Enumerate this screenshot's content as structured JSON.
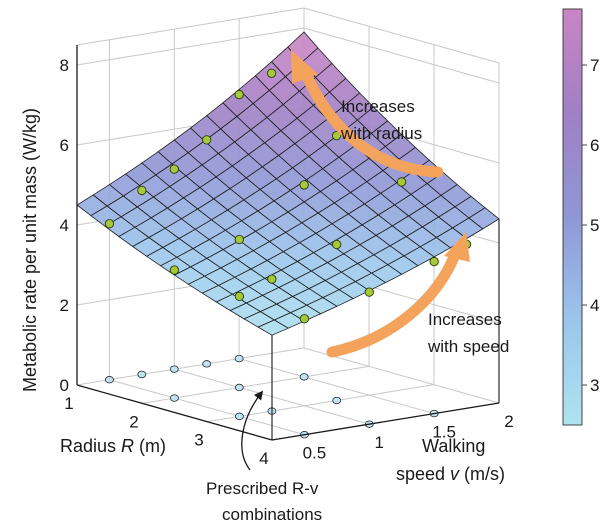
{
  "chart_data": {
    "type": "surface3d",
    "zlabel": "Metabolic rate per unit mass (W/kg)",
    "xlabel_pre": "Radius ",
    "xlabel_var": "R",
    "xlabel_post": " (m)",
    "ylabel_line1": "Walking",
    "ylabel_line2_pre": "speed ",
    "ylabel_line2_var": "v",
    "ylabel_line2_post": " (m/s)",
    "x_ticks": [
      "1",
      "2",
      "3",
      "4"
    ],
    "y_ticks": [
      "0.5",
      "1",
      "1.5",
      "2"
    ],
    "z_ticks": [
      "0",
      "2",
      "4",
      "6",
      "8"
    ],
    "xlim": [
      1,
      4
    ],
    "ylim": [
      0.25,
      2
    ],
    "zlim": [
      0,
      8.5
    ],
    "surface_corners": {
      "R1_v2": 7.9,
      "R1_v0.25": 4.5,
      "R4_v2": 4.6,
      "R4_v0.25": 2.6
    },
    "prescribed_points": [
      {
        "R": 1.0,
        "v": 0.5
      },
      {
        "R": 1.0,
        "v": 0.75
      },
      {
        "R": 1.0,
        "v": 1.0
      },
      {
        "R": 1.0,
        "v": 1.25
      },
      {
        "R": 1.0,
        "v": 1.5
      },
      {
        "R": 2.0,
        "v": 0.5
      },
      {
        "R": 2.0,
        "v": 1.0
      },
      {
        "R": 2.0,
        "v": 1.5
      },
      {
        "R": 3.0,
        "v": 0.5
      },
      {
        "R": 3.0,
        "v": 0.75
      },
      {
        "R": 3.0,
        "v": 1.25
      },
      {
        "R": 4.0,
        "v": 0.5
      },
      {
        "R": 4.0,
        "v": 1.0
      },
      {
        "R": 4.0,
        "v": 1.5
      }
    ],
    "measured_points": [
      {
        "R": 1.0,
        "v": 0.5,
        "m": 3.9
      },
      {
        "R": 1.0,
        "v": 0.75,
        "m": 4.6
      },
      {
        "R": 1.0,
        "v": 1.0,
        "m": 5.0
      },
      {
        "R": 1.0,
        "v": 1.25,
        "m": 5.6
      },
      {
        "R": 1.0,
        "v": 1.5,
        "m": 6.6
      },
      {
        "R": 1.0,
        "v": 1.75,
        "m": 7.0
      },
      {
        "R": 2.0,
        "v": 0.5,
        "m": 3.2
      },
      {
        "R": 2.0,
        "v": 1.0,
        "m": 3.7
      },
      {
        "R": 2.0,
        "v": 1.5,
        "m": 4.8
      },
      {
        "R": 2.0,
        "v": 1.75,
        "m": 5.9
      },
      {
        "R": 3.0,
        "v": 0.5,
        "m": 3.0
      },
      {
        "R": 3.0,
        "v": 0.75,
        "m": 3.3
      },
      {
        "R": 3.0,
        "v": 1.25,
        "m": 3.9
      },
      {
        "R": 3.0,
        "v": 1.75,
        "m": 5.2
      },
      {
        "R": 4.0,
        "v": 0.5,
        "m": 2.9
      },
      {
        "R": 4.0,
        "v": 1.0,
        "m": 3.3
      },
      {
        "R": 4.0,
        "v": 1.5,
        "m": 3.8
      },
      {
        "R": 4.0,
        "v": 1.75,
        "m": 4.1
      }
    ],
    "colorbar": {
      "ticks": [
        "3",
        "4",
        "5",
        "6",
        "7"
      ],
      "range": [
        2.5,
        7.7
      ],
      "colors": [
        "#aee3ef",
        "#9bc6ec",
        "#8f97d6",
        "#a080c4",
        "#c985c4"
      ]
    },
    "annotations": {
      "radius_line1": "Increases",
      "radius_line2": "with radius",
      "speed_line1": "Increases",
      "speed_line2": "with speed",
      "prescribed_line1": "Prescribed R-v",
      "prescribed_line2": "combinations"
    },
    "colors": {
      "arrow": "#f3a35c",
      "grid": "#c8c8c8",
      "axis": "#1a1a1a",
      "measured_fill": "#a6c93a",
      "prescribed_fill": "#bfe3f1"
    }
  }
}
